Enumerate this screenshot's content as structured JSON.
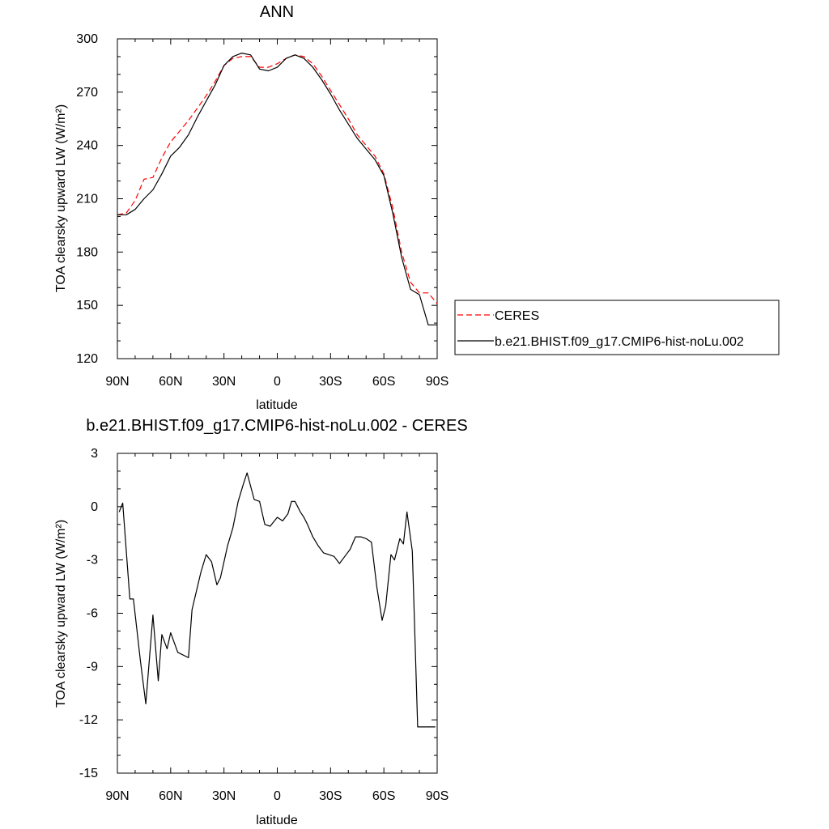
{
  "chart_data": [
    {
      "type": "line",
      "title": "ANN",
      "xlabel": "latitude",
      "ylabel": "TOA clearsky upward LW (W/m²)",
      "xlim": [
        90,
        -90
      ],
      "ylim": [
        120,
        300
      ],
      "x_ticks": [
        {
          "value": 90,
          "label": "90N"
        },
        {
          "value": 60,
          "label": "60N"
        },
        {
          "value": 30,
          "label": "30N"
        },
        {
          "value": 0,
          "label": "0"
        },
        {
          "value": -30,
          "label": "30S"
        },
        {
          "value": -60,
          "label": "60S"
        },
        {
          "value": -90,
          "label": "90S"
        }
      ],
      "y_ticks": [
        120,
        150,
        180,
        210,
        240,
        270,
        300
      ],
      "legend": {
        "placement": "right"
      },
      "series": [
        {
          "name": "CERES",
          "color": "#ff0000",
          "dash": "dashed",
          "x": [
            90,
            85,
            80,
            75,
            70,
            65,
            60,
            55,
            50,
            45,
            40,
            35,
            30,
            25,
            20,
            15,
            10,
            5,
            0,
            -5,
            -10,
            -15,
            -20,
            -25,
            -30,
            -35,
            -40,
            -45,
            -50,
            -55,
            -60,
            -65,
            -70,
            -75,
            -80,
            -85,
            -90
          ],
          "y": [
            201,
            202,
            209,
            221,
            222,
            233,
            242,
            248,
            254,
            261,
            268,
            276,
            285,
            289,
            290,
            290,
            284,
            284,
            286,
            289,
            291,
            290,
            286,
            279,
            271,
            263,
            255,
            246,
            240,
            234,
            224,
            205,
            180,
            163,
            157,
            157,
            151
          ]
        },
        {
          "name": "b.e21.BHIST.f09_g17.CMIP6-hist-noLu.002",
          "color": "#000000",
          "dash": "solid",
          "x": [
            90,
            85,
            80,
            75,
            70,
            65,
            60,
            55,
            50,
            45,
            40,
            35,
            30,
            25,
            20,
            15,
            10,
            5,
            0,
            -5,
            -10,
            -15,
            -20,
            -25,
            -30,
            -35,
            -40,
            -45,
            -50,
            -55,
            -60,
            -65,
            -70,
            -75,
            -80,
            -85,
            -90
          ],
          "y": [
            201,
            201,
            204,
            210,
            215,
            224,
            234,
            239,
            246,
            256,
            265,
            274,
            285,
            290,
            292,
            291,
            283,
            282,
            284,
            289,
            291,
            289,
            284,
            277,
            269,
            260,
            252,
            244,
            238,
            232,
            223,
            202,
            177,
            159,
            156,
            139,
            139
          ]
        }
      ]
    },
    {
      "type": "line",
      "title": "b.e21.BHIST.f09_g17.CMIP6-hist-noLu.002 - CERES",
      "xlabel": "latitude",
      "ylabel": "TOA clearsky upward LW (W/m²)",
      "xlim": [
        90,
        -90
      ],
      "ylim": [
        -15,
        3
      ],
      "x_ticks": [
        {
          "value": 90,
          "label": "90N"
        },
        {
          "value": 60,
          "label": "60N"
        },
        {
          "value": 30,
          "label": "30N"
        },
        {
          "value": 0,
          "label": "0"
        },
        {
          "value": -30,
          "label": "30S"
        },
        {
          "value": -60,
          "label": "60S"
        },
        {
          "value": -90,
          "label": "90S"
        }
      ],
      "y_ticks": [
        -15,
        -12,
        -9,
        -6,
        -3,
        0,
        3
      ],
      "series": [
        {
          "color": "#000000",
          "dash": "solid",
          "x": [
            89,
            87,
            83,
            81,
            77,
            74,
            70,
            67,
            65,
            62,
            60,
            56,
            50,
            48,
            43,
            40,
            37,
            34,
            32,
            28,
            25,
            22,
            19,
            17,
            13,
            10,
            7,
            4,
            0,
            -3,
            -6,
            -8,
            -10,
            -13,
            -15,
            -17,
            -20,
            -23,
            -26,
            -29,
            -32,
            -35,
            -38,
            -41,
            -44,
            -47,
            -50,
            -53,
            -56,
            -59,
            -61,
            -64,
            -66,
            -69,
            -71,
            -73,
            -76,
            -79,
            -81,
            -83,
            -86,
            -89
          ],
          "y": [
            -0.3,
            0.2,
            -5.2,
            -5.2,
            -8.7,
            -11.1,
            -6.1,
            -9.8,
            -7.2,
            -8.0,
            -7.1,
            -8.2,
            -8.5,
            -5.8,
            -3.7,
            -2.7,
            -3.1,
            -4.4,
            -4.0,
            -2.2,
            -1.2,
            0.3,
            1.3,
            1.9,
            0.4,
            0.3,
            -1.0,
            -1.1,
            -0.6,
            -0.8,
            -0.4,
            0.3,
            0.3,
            -0.3,
            -0.6,
            -1.0,
            -1.7,
            -2.2,
            -2.6,
            -2.7,
            -2.8,
            -3.2,
            -2.8,
            -2.4,
            -1.7,
            -1.7,
            -1.8,
            -2.0,
            -4.5,
            -6.4,
            -5.6,
            -2.7,
            -3.0,
            -1.8,
            -2.1,
            -0.3,
            -2.5,
            -12.4,
            -12.4,
            -12.4,
            -12.4,
            -12.4
          ]
        }
      ]
    }
  ]
}
